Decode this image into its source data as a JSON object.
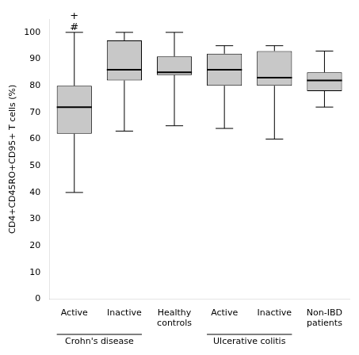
{
  "chart_data": {
    "type": "box",
    "categories": [
      "Active",
      "Inactive",
      "Healthy\ncontrols",
      "Active",
      "Inactive",
      "Non-IBD\npatients"
    ],
    "values": [
      {
        "whislo": 40,
        "q1": 62,
        "med": 72,
        "q3": 80,
        "whishi": 100
      },
      {
        "whislo": 63,
        "q1": 82,
        "med": 86,
        "q3": 97,
        "whishi": 100
      },
      {
        "whislo": 65,
        "q1": 84,
        "med": 85,
        "q3": 91,
        "whishi": 100
      },
      {
        "whislo": 64,
        "q1": 80,
        "med": 86,
        "q3": 92,
        "whishi": 95
      },
      {
        "whislo": 60,
        "q1": 80,
        "med": 83,
        "q3": 93,
        "whishi": 95
      },
      {
        "whislo": 72,
        "q1": 78,
        "med": 82,
        "q3": 85,
        "whishi": 93
      }
    ],
    "color": "#c8c8c8",
    "ylabel": "CD4+CD45RO+CD95+ T cells (%)",
    "ylim": [
      0,
      105
    ],
    "yticks": [
      0,
      10,
      20,
      30,
      40,
      50,
      60,
      70,
      80,
      90,
      100
    ],
    "grid": false,
    "annotations": [
      {
        "text": "+",
        "x": 0,
        "y": 104
      },
      {
        "text": "#",
        "x": 0,
        "y": 100
      }
    ],
    "group_labels": [
      {
        "label": "Crohn's disease",
        "positions": [
          0,
          1
        ]
      },
      {
        "label": "Ulcerative colitis",
        "positions": [
          3,
          4
        ]
      }
    ]
  }
}
